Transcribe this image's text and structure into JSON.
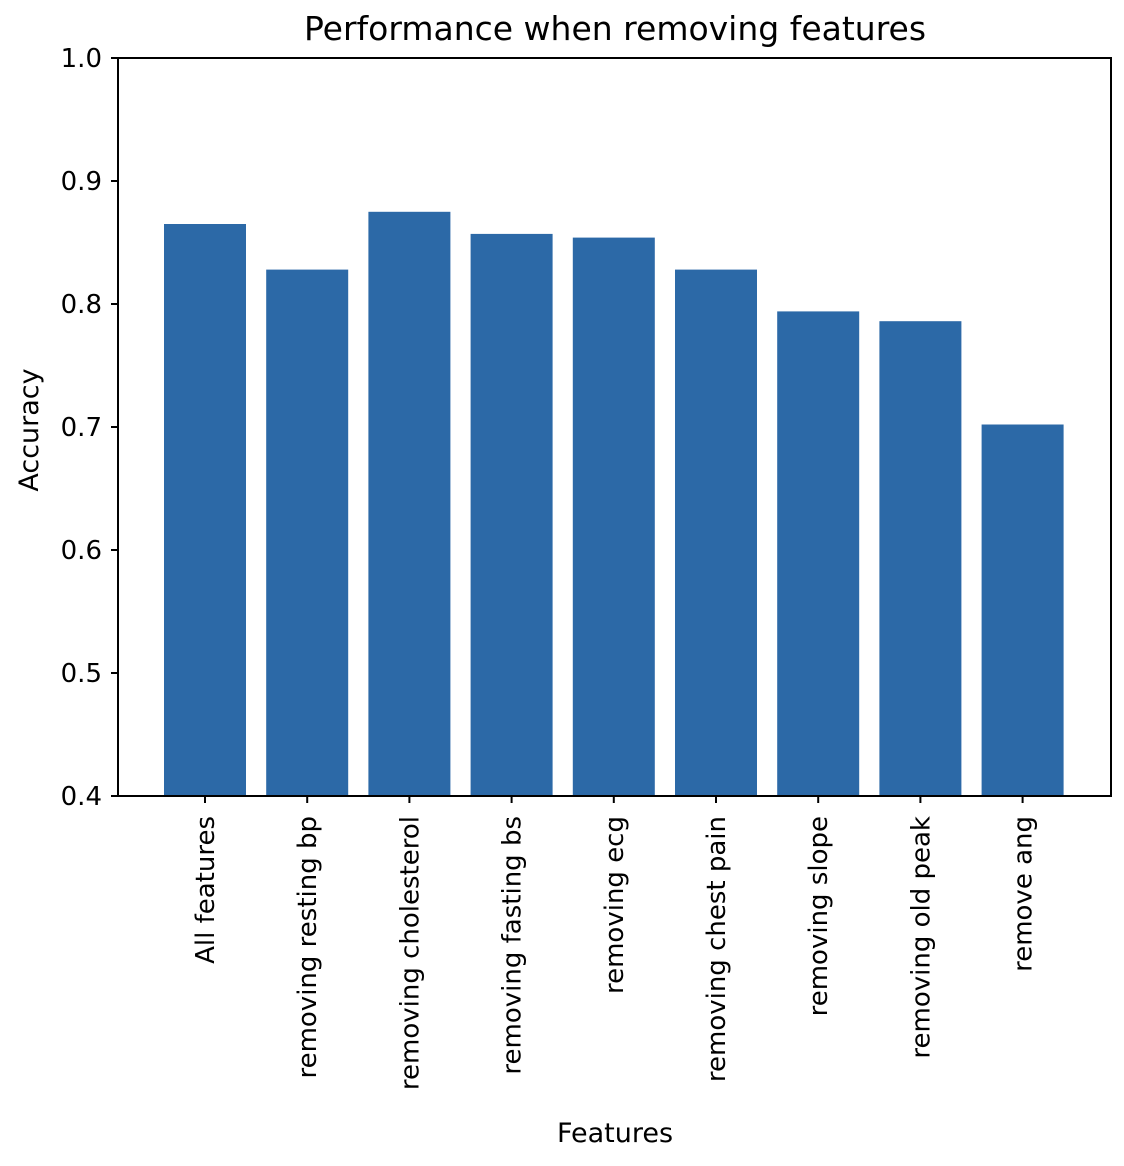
{
  "chart_data": {
    "type": "bar",
    "title": "Performance when removing features",
    "xlabel": "Features",
    "ylabel": "Accuracy",
    "categories": [
      "All features",
      "removing resting bp",
      "removing cholesterol",
      "removing fasting bs",
      "removing ecg",
      "removing chest pain",
      "removing slope",
      "removing old peak",
      "remove ang"
    ],
    "values": [
      0.865,
      0.828,
      0.875,
      0.857,
      0.854,
      0.828,
      0.794,
      0.786,
      0.702
    ],
    "ylim": [
      0.4,
      1.0
    ],
    "yticks": [
      "0.4",
      "0.5",
      "0.6",
      "0.7",
      "0.8",
      "0.9",
      "1.0"
    ],
    "grid": false,
    "bar_color": "#2c69a7"
  }
}
